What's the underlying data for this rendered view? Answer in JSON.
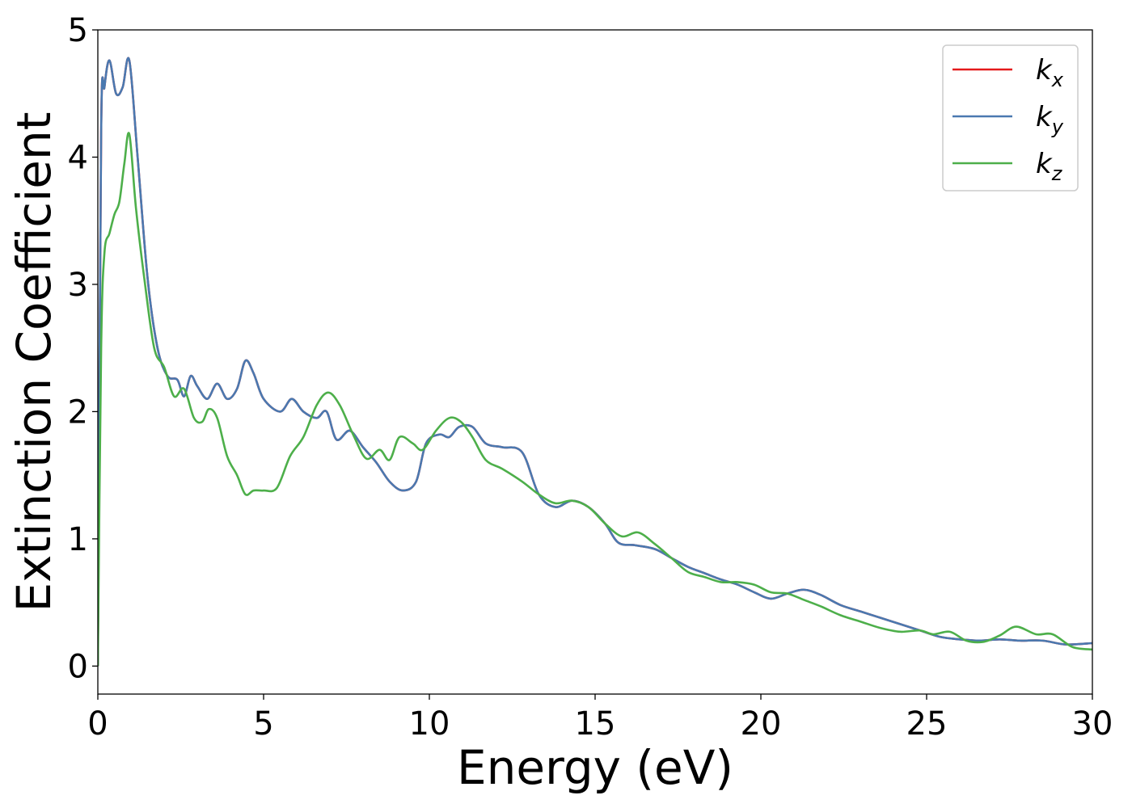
{
  "chart_data": {
    "type": "line",
    "xlabel": "Energy (eV)",
    "ylabel": "Extinction Coefficient",
    "xlim": [
      0,
      30
    ],
    "ylim": [
      -0.22,
      5.0
    ],
    "xticks": [
      0,
      5,
      10,
      15,
      20,
      25,
      30
    ],
    "yticks": [
      0,
      1,
      2,
      3,
      4,
      5
    ],
    "grid": false,
    "legend_position": "top-right",
    "series": [
      {
        "name": "k_x",
        "label_base": "k",
        "label_sub": "x",
        "color": "#e41a1c",
        "x": [
          0,
          0.1,
          0.2,
          0.35,
          0.55,
          0.75,
          0.95,
          1.2,
          1.5,
          1.8,
          2.1,
          2.4,
          2.6,
          2.8,
          3.0,
          3.3,
          3.6,
          3.9,
          4.2,
          4.45,
          4.7,
          5.0,
          5.5,
          5.85,
          6.2,
          6.6,
          6.9,
          7.2,
          7.6,
          8.0,
          8.4,
          8.8,
          9.2,
          9.6,
          9.9,
          10.3,
          10.6,
          10.9,
          11.3,
          11.7,
          12.2,
          12.8,
          13.3,
          13.8,
          14.3,
          14.8,
          15.3,
          15.7,
          16.2,
          16.8,
          17.3,
          17.8,
          18.3,
          18.8,
          19.3,
          19.8,
          20.3,
          20.8,
          21.3,
          21.8,
          22.4,
          23.0,
          23.6,
          24.2,
          24.8,
          25.4,
          26.0,
          26.6,
          27.2,
          27.8,
          28.5,
          29.2,
          30.0
        ],
        "values": [
          0.0,
          4.2,
          4.55,
          4.76,
          4.5,
          4.55,
          4.76,
          4.0,
          3.05,
          2.5,
          2.28,
          2.25,
          2.12,
          2.28,
          2.2,
          2.1,
          2.22,
          2.1,
          2.18,
          2.4,
          2.3,
          2.1,
          2.0,
          2.1,
          2.0,
          1.95,
          2.0,
          1.78,
          1.85,
          1.72,
          1.6,
          1.45,
          1.38,
          1.45,
          1.75,
          1.82,
          1.8,
          1.88,
          1.88,
          1.75,
          1.72,
          1.68,
          1.35,
          1.25,
          1.3,
          1.25,
          1.12,
          0.97,
          0.95,
          0.92,
          0.85,
          0.78,
          0.73,
          0.68,
          0.64,
          0.58,
          0.53,
          0.57,
          0.6,
          0.56,
          0.48,
          0.43,
          0.38,
          0.33,
          0.28,
          0.23,
          0.21,
          0.2,
          0.21,
          0.2,
          0.2,
          0.17,
          0.18
        ]
      },
      {
        "name": "k_y",
        "label_base": "k",
        "label_sub": "y",
        "color": "#4a79b0",
        "x": [
          0,
          0.1,
          0.2,
          0.35,
          0.55,
          0.75,
          0.95,
          1.2,
          1.5,
          1.8,
          2.1,
          2.4,
          2.6,
          2.8,
          3.0,
          3.3,
          3.6,
          3.9,
          4.2,
          4.45,
          4.7,
          5.0,
          5.5,
          5.85,
          6.2,
          6.6,
          6.9,
          7.2,
          7.6,
          8.0,
          8.4,
          8.8,
          9.2,
          9.6,
          9.9,
          10.3,
          10.6,
          10.9,
          11.3,
          11.7,
          12.2,
          12.8,
          13.3,
          13.8,
          14.3,
          14.8,
          15.3,
          15.7,
          16.2,
          16.8,
          17.3,
          17.8,
          18.3,
          18.8,
          19.3,
          19.8,
          20.3,
          20.8,
          21.3,
          21.8,
          22.4,
          23.0,
          23.6,
          24.2,
          24.8,
          25.4,
          26.0,
          26.6,
          27.2,
          27.8,
          28.5,
          29.2,
          30.0
        ],
        "values": [
          0.0,
          4.2,
          4.55,
          4.76,
          4.5,
          4.55,
          4.76,
          4.0,
          3.05,
          2.5,
          2.28,
          2.25,
          2.12,
          2.28,
          2.2,
          2.1,
          2.22,
          2.1,
          2.18,
          2.4,
          2.3,
          2.1,
          2.0,
          2.1,
          2.0,
          1.95,
          2.0,
          1.78,
          1.85,
          1.72,
          1.6,
          1.45,
          1.38,
          1.45,
          1.75,
          1.82,
          1.8,
          1.88,
          1.88,
          1.75,
          1.72,
          1.68,
          1.35,
          1.25,
          1.3,
          1.25,
          1.12,
          0.97,
          0.95,
          0.92,
          0.85,
          0.78,
          0.73,
          0.68,
          0.64,
          0.58,
          0.53,
          0.57,
          0.6,
          0.56,
          0.48,
          0.43,
          0.38,
          0.33,
          0.28,
          0.23,
          0.21,
          0.2,
          0.21,
          0.2,
          0.2,
          0.17,
          0.18
        ]
      },
      {
        "name": "k_z",
        "label_base": "k",
        "label_sub": "z",
        "color": "#4daf4a",
        "x": [
          0,
          0.1,
          0.2,
          0.35,
          0.5,
          0.65,
          0.8,
          0.95,
          1.15,
          1.4,
          1.7,
          2.0,
          2.3,
          2.6,
          2.9,
          3.15,
          3.35,
          3.6,
          3.9,
          4.2,
          4.45,
          4.7,
          5.0,
          5.4,
          5.8,
          6.2,
          6.6,
          6.95,
          7.3,
          7.7,
          8.1,
          8.5,
          8.8,
          9.1,
          9.5,
          9.8,
          10.2,
          10.6,
          10.95,
          11.3,
          11.7,
          12.2,
          12.8,
          13.3,
          13.8,
          14.3,
          14.8,
          15.3,
          15.8,
          16.3,
          16.8,
          17.3,
          17.8,
          18.3,
          18.8,
          19.3,
          19.8,
          20.3,
          20.8,
          21.3,
          21.8,
          22.4,
          23.0,
          23.6,
          24.2,
          24.8,
          25.2,
          25.7,
          26.2,
          26.7,
          27.2,
          27.7,
          28.3,
          28.8,
          29.4,
          30.0
        ],
        "values": [
          0.0,
          2.5,
          3.25,
          3.4,
          3.55,
          3.65,
          3.95,
          4.18,
          3.6,
          3.05,
          2.5,
          2.35,
          2.12,
          2.18,
          1.95,
          1.92,
          2.02,
          1.95,
          1.65,
          1.5,
          1.35,
          1.38,
          1.38,
          1.4,
          1.65,
          1.8,
          2.05,
          2.15,
          2.05,
          1.82,
          1.63,
          1.7,
          1.62,
          1.8,
          1.75,
          1.7,
          1.85,
          1.95,
          1.92,
          1.8,
          1.62,
          1.55,
          1.45,
          1.35,
          1.28,
          1.3,
          1.25,
          1.12,
          1.02,
          1.05,
          0.96,
          0.85,
          0.74,
          0.7,
          0.66,
          0.66,
          0.64,
          0.58,
          0.57,
          0.52,
          0.47,
          0.4,
          0.35,
          0.3,
          0.27,
          0.28,
          0.25,
          0.27,
          0.2,
          0.19,
          0.24,
          0.31,
          0.25,
          0.25,
          0.15,
          0.13
        ]
      }
    ]
  }
}
